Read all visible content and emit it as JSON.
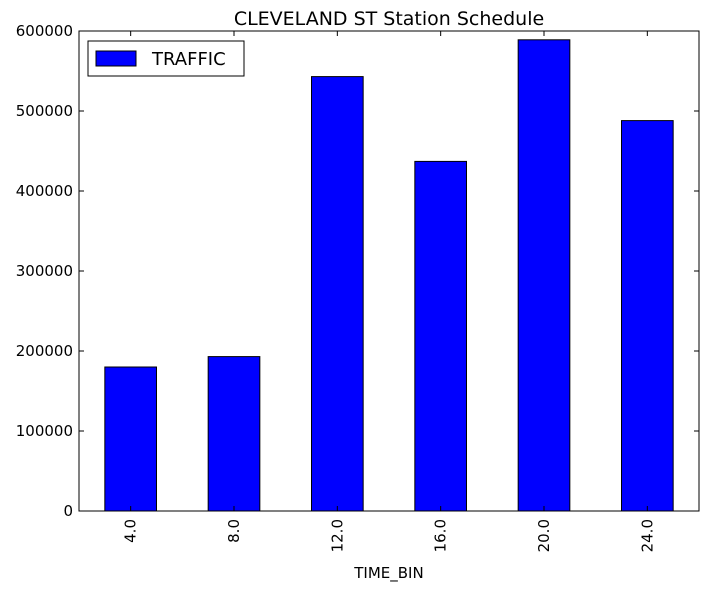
{
  "chart_data": {
    "type": "bar",
    "title": "CLEVELAND ST Station Schedule",
    "xlabel": "TIME_BIN",
    "ylabel": "",
    "categories": [
      "4.0",
      "8.0",
      "12.0",
      "16.0",
      "20.0",
      "24.0"
    ],
    "series": [
      {
        "name": "TRAFFIC",
        "values": [
          180000,
          193000,
          543000,
          437000,
          589000,
          488000
        ],
        "color": "#0000ff"
      }
    ],
    "ylim": [
      0,
      600000
    ],
    "yticks": [
      0,
      100000,
      200000,
      300000,
      400000,
      500000,
      600000
    ],
    "ytick_labels": [
      "0",
      "100000",
      "200000",
      "300000",
      "400000",
      "500000",
      "600000"
    ],
    "grid": false,
    "legend_position": "top-left",
    "x_tick_rotation": "vertical"
  }
}
